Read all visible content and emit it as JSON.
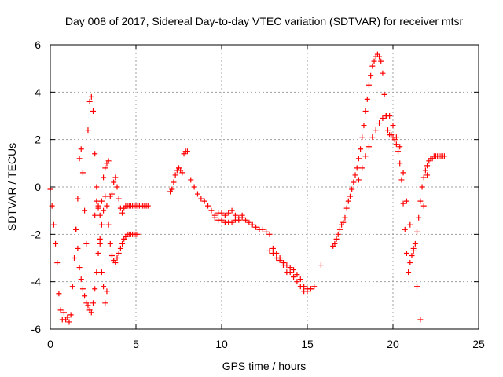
{
  "chart_data": {
    "type": "scatter",
    "title": "Day 008 of 2017, Sidereal Day-to-day VTEC variation (SDTVAR) for receiver mtsr",
    "xlabel": "GPS time / hours",
    "ylabel": "SDTVAR / TECUs",
    "xlim": [
      0,
      25
    ],
    "ylim": [
      -6,
      6
    ],
    "xticks": [
      0,
      5,
      10,
      15,
      20,
      25
    ],
    "yticks": [
      -6,
      -4,
      -2,
      0,
      2,
      4,
      6
    ],
    "grid": true,
    "marker": "+",
    "series": [
      {
        "name": "SDTVAR",
        "color": "#ff0000",
        "x": [
          0.0,
          0.1,
          0.2,
          0.3,
          0.4,
          0.5,
          0.6,
          0.7,
          0.8,
          0.9,
          1.0,
          1.1,
          1.2,
          1.3,
          1.4,
          1.5,
          1.6,
          1.7,
          1.8,
          1.9,
          2.0,
          2.1,
          2.2,
          2.3,
          2.4,
          2.5,
          2.6,
          2.7,
          2.8,
          2.9,
          3.0,
          3.1,
          3.2,
          3.3,
          3.4,
          3.5,
          3.6,
          3.7,
          3.8,
          3.9,
          4.0,
          4.1,
          4.2,
          4.3,
          4.4,
          4.5,
          4.6,
          4.7,
          4.8,
          4.9,
          5.0,
          5.1,
          5.2,
          5.3,
          5.4,
          5.5,
          5.6,
          5.7,
          1.5,
          1.6,
          1.7,
          1.8,
          1.9,
          2.0,
          2.1,
          2.2,
          2.3,
          2.4,
          2.5,
          2.6,
          2.7,
          2.8,
          2.9,
          3.0,
          3.1,
          3.2,
          3.3,
          3.4,
          3.5,
          3.6,
          3.7,
          3.8,
          3.9,
          4.0,
          4.1,
          4.2,
          4.3,
          4.4,
          4.5,
          4.6,
          4.7,
          4.8,
          4.9,
          5.0,
          5.1,
          2.6,
          2.7,
          2.8,
          2.9,
          3.0,
          3.1,
          3.2,
          3.3,
          7.0,
          7.1,
          7.2,
          7.3,
          7.4,
          7.5,
          7.6,
          7.7,
          7.8,
          7.9,
          8.0,
          8.2,
          8.4,
          8.6,
          8.8,
          9.0,
          9.2,
          9.4,
          9.6,
          9.8,
          10.0,
          10.2,
          10.4,
          10.6,
          10.8,
          11.0,
          11.2,
          11.4,
          11.6,
          11.8,
          12.0,
          12.2,
          12.4,
          12.6,
          12.8,
          13.0,
          13.2,
          13.4,
          13.6,
          13.8,
          14.0,
          14.2,
          14.4,
          14.6,
          14.8,
          15.0,
          15.2,
          15.4,
          9.6,
          9.8,
          10.0,
          10.2,
          10.4,
          10.6,
          10.8,
          11.0,
          11.2,
          12.8,
          13.0,
          13.2,
          13.4,
          13.6,
          13.8,
          14.0,
          14.2,
          14.4,
          14.6,
          14.8,
          15.0,
          15.2,
          15.8,
          16.5,
          16.6,
          16.7,
          16.8,
          16.9,
          17.0,
          17.1,
          17.2,
          17.3,
          17.4,
          17.5,
          17.6,
          17.7,
          17.8,
          17.9,
          18.0,
          18.1,
          18.2,
          18.3,
          18.4,
          18.5,
          18.6,
          18.7,
          18.8,
          18.9,
          19.0,
          19.1,
          19.2,
          19.3,
          19.4,
          19.5,
          19.6,
          19.7,
          19.8,
          19.9,
          20.0,
          20.1,
          20.2,
          20.3,
          20.4,
          20.5,
          20.6,
          20.7,
          20.8,
          20.9,
          21.0,
          21.1,
          21.2,
          21.3,
          21.4,
          21.5,
          21.6,
          21.7,
          21.8,
          21.9,
          22.0,
          22.1,
          22.2,
          22.3,
          22.4,
          22.5,
          22.6,
          22.7,
          22.8,
          22.9,
          23.0,
          18.0,
          18.2,
          18.4,
          18.6,
          18.8,
          19.0,
          19.2,
          19.4,
          19.6,
          19.8,
          20.0,
          20.2,
          20.4,
          20.6,
          20.8,
          21.0,
          21.2,
          21.4,
          21.6,
          21.8,
          22.0
        ],
        "y": [
          -0.1,
          -0.8,
          -1.6,
          -2.4,
          -3.2,
          -4.5,
          -5.2,
          -5.6,
          -5.3,
          -5.6,
          -5.5,
          -5.7,
          -5.4,
          -4.2,
          -3.0,
          -1.8,
          -0.5,
          1.2,
          1.6,
          0.6,
          -1.0,
          -2.4,
          2.4,
          3.6,
          3.8,
          3.2,
          1.4,
          0.0,
          -0.8,
          -1.2,
          -0.6,
          0.4,
          0.8,
          1.0,
          1.1,
          -0.4,
          -0.3,
          0.2,
          0.4,
          0.0,
          -0.5,
          -0.9,
          -1.1,
          -0.9,
          -0.8,
          -0.8,
          -0.8,
          -0.8,
          -0.8,
          -0.8,
          -0.8,
          -0.8,
          -0.8,
          -0.8,
          -0.8,
          -0.8,
          -0.8,
          -0.8,
          -1.8,
          -2.6,
          -3.4,
          -3.9,
          -4.3,
          -4.6,
          -4.9,
          -5.0,
          -5.2,
          -5.3,
          -4.9,
          -4.3,
          -3.6,
          -2.8,
          -2.2,
          -1.6,
          -1.0,
          -0.4,
          -0.8,
          -1.6,
          -2.4,
          -2.9,
          -3.1,
          -3.2,
          -3.0,
          -2.8,
          -2.6,
          -2.4,
          -2.2,
          -2.1,
          -2.0,
          -2.0,
          -2.0,
          -2.0,
          -2.0,
          -2.0,
          -2.0,
          -1.2,
          -0.6,
          -0.9,
          -2.4,
          -3.6,
          -4.2,
          -4.9,
          -4.4,
          -0.2,
          -0.1,
          0.2,
          0.5,
          0.7,
          0.8,
          0.7,
          0.6,
          1.4,
          1.5,
          1.5,
          0.3,
          0.0,
          -0.3,
          -0.5,
          -0.6,
          -0.8,
          -1.0,
          -1.2,
          -1.1,
          -1.1,
          -1.2,
          -1.1,
          -1.0,
          -1.2,
          -1.3,
          -1.2,
          -1.4,
          -1.5,
          -1.6,
          -1.7,
          -1.8,
          -1.8,
          -1.9,
          -2.0,
          -2.6,
          -2.8,
          -3.0,
          -3.3,
          -3.6,
          -3.6,
          -3.8,
          -4.0,
          -4.2,
          -4.4,
          -4.3,
          -4.3,
          -4.2,
          -1.3,
          -1.4,
          -1.4,
          -1.5,
          -1.5,
          -1.5,
          -1.4,
          -1.4,
          -1.3,
          -2.7,
          -2.8,
          -3.0,
          -3.1,
          -3.2,
          -3.3,
          -3.4,
          -3.5,
          -3.7,
          -3.9,
          -4.2,
          -4.4,
          -4.3,
          -3.3,
          -2.5,
          -2.4,
          -2.2,
          -2.0,
          -1.8,
          -1.6,
          -1.5,
          -1.3,
          -0.9,
          -0.6,
          -0.4,
          -0.1,
          0.2,
          0.5,
          0.8,
          1.2,
          1.6,
          2.1,
          2.6,
          3.2,
          3.7,
          4.3,
          4.7,
          5.1,
          5.3,
          5.5,
          5.6,
          5.5,
          5.3,
          4.8,
          3.9,
          3.0,
          2.4,
          2.2,
          2.2,
          2.1,
          2.0,
          1.8,
          1.5,
          1.0,
          0.3,
          -0.7,
          -1.8,
          -2.8,
          -3.6,
          -3.2,
          -2.9,
          -2.7,
          -2.4,
          -1.9,
          -1.3,
          -0.6,
          0.0,
          0.4,
          0.7,
          0.9,
          1.1,
          1.2,
          1.2,
          1.3,
          1.3,
          1.3,
          1.3,
          1.3,
          1.3,
          1.3,
          0.3,
          0.8,
          1.3,
          1.7,
          2.1,
          2.4,
          2.7,
          2.9,
          3.0,
          3.0,
          2.6,
          2.1,
          1.7,
          0.6,
          -0.6,
          -1.6,
          -2.6,
          -4.2,
          -5.6,
          -0.8,
          0.5
        ]
      }
    ]
  }
}
